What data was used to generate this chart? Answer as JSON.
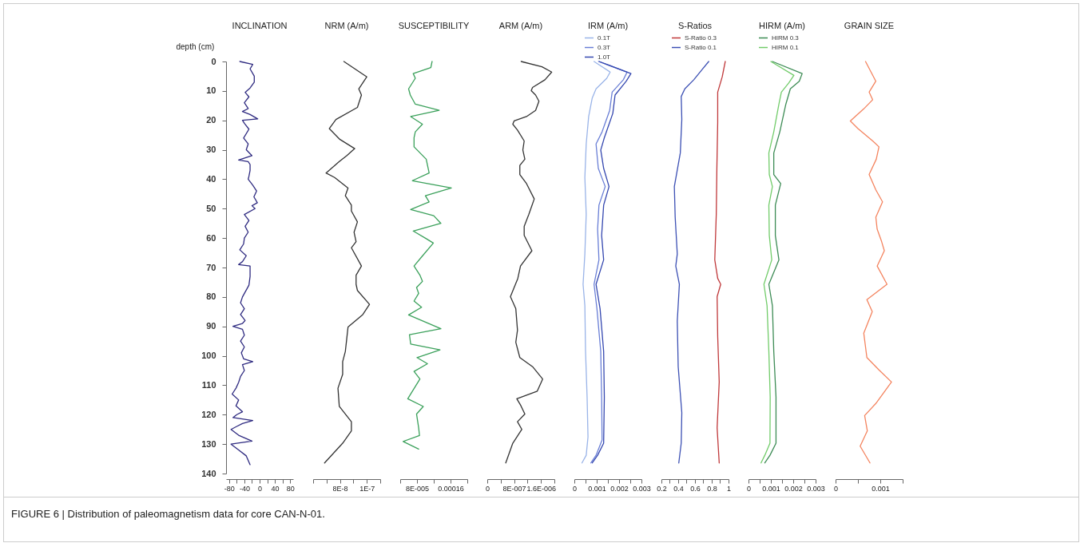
{
  "chart_data": [
    {
      "type": "line",
      "title": "INCLINATION",
      "ylabel": "depth (cm)",
      "xlim": [
        -88,
        88
      ],
      "xticks": [
        -80,
        {
          "value": -60,
          "label": null
        },
        -40,
        {
          "value": -20,
          "label": null
        },
        0,
        {
          "value": 20,
          "label": null
        },
        40,
        {
          "value": 60,
          "label": null
        },
        80
      ],
      "ylim": [
        140,
        0
      ],
      "yticks": [
        0,
        10,
        20,
        30,
        40,
        50,
        60,
        70,
        80,
        90,
        100,
        110,
        120,
        130,
        140
      ],
      "annotations": [
        "FIGURE 6 | Distribution of paleomagnetism data for core CAN-N-01."
      ],
      "series": [
        {
          "color": "#2e2a80",
          "x": [
            -52,
            -18,
            -25,
            -14,
            -14,
            -25,
            -38,
            -28,
            -40,
            -30,
            -45,
            -25,
            -5,
            -45,
            -40,
            -28,
            -42,
            -30,
            -35,
            -20,
            -55,
            -30,
            -25,
            -25,
            -28,
            -30,
            -18,
            -8,
            -15,
            -6,
            -20,
            -12,
            -40,
            -28,
            -38,
            -30,
            -40,
            -42,
            -52,
            -35,
            -45,
            -55,
            -25,
            -25,
            -25,
            -28,
            -45,
            -50,
            -40,
            -50,
            -38,
            -45,
            -70,
            -45,
            -40,
            -50,
            -40,
            -48,
            -42,
            -18,
            -45,
            -40,
            -50,
            -55,
            -62,
            -72,
            -55,
            -62,
            -45,
            -60,
            -70,
            -18,
            -45,
            -60,
            -75,
            -55,
            -20,
            -75,
            -55,
            -35,
            -25
          ],
          "values": [
            0,
            1,
            2.5,
            5,
            7,
            9,
            10.5,
            12,
            14,
            16,
            17,
            18,
            19.5,
            20,
            21,
            23,
            26,
            28,
            30,
            32,
            33.5,
            34,
            35,
            37,
            39,
            40,
            42,
            44,
            46,
            48,
            49,
            50,
            52,
            54,
            56,
            58,
            60,
            62,
            64,
            66,
            68,
            69,
            69.5,
            71,
            73,
            76,
            80,
            82,
            84,
            86,
            88,
            89,
            90,
            91,
            93,
            95,
            97,
            99,
            101,
            102,
            103,
            105,
            107,
            109,
            111,
            113,
            115,
            117,
            119,
            120,
            121,
            122,
            123,
            124,
            125,
            127,
            129,
            130,
            132,
            134,
            137
          ]
        }
      ]
    },
    {
      "type": "line",
      "title": "NRM (A/m)",
      "tick_labels": "x",
      "xlim": [
        6e-08,
        1.1e-07
      ],
      "xticks": [
        {
          "value": 6e-08,
          "label": null
        },
        {
          "value": 7e-08,
          "label": null
        },
        {
          "value": 8e-08,
          "label": "8E-8"
        },
        {
          "value": 9e-08,
          "label": null
        },
        {
          "value": 1e-07,
          "label": "1E-7"
        },
        {
          "value": 1.1e-07,
          "label": null
        }
      ],
      "ylim": [
        140,
        0
      ],
      "series": [
        {
          "color": "#333333",
          "x": [
            8.29e-08,
            1e-07,
            9.4e-08,
            9.6e-08,
            9.3e-08,
            7.7e-08,
            7.2e-08,
            8e-08,
            9.1e-08,
            8.5e-08,
            7.95e-08,
            6.96e-08,
            7.6e-08,
            8.6e-08,
            8.4e-08,
            8.85e-08,
            8.85e-08,
            9.3e-08,
            9.05e-08,
            9.2e-08,
            8.85e-08,
            9.6e-08,
            9.2e-08,
            9.2e-08,
            9.3e-08,
            1.02e-07,
            9.7e-08,
            8.6e-08,
            8.5e-08,
            8.4e-08,
            8.2e-08,
            8.2e-08,
            7.85e-08,
            7.95e-08,
            8.85e-08,
            8.85e-08,
            8.2e-08,
            6.85e-08
          ],
          "values": [
            0,
            5.2,
            9.3,
            11.4,
            15.6,
            19.7,
            22.8,
            26.5,
            29.6,
            32,
            34,
            37.9,
            39.4,
            43,
            45.6,
            48.8,
            50.8,
            54.5,
            58,
            61.2,
            63.3,
            69.5,
            72.6,
            75.7,
            77.8,
            82.5,
            86,
            90.2,
            94.4,
            98.5,
            102,
            106.3,
            111,
            117.2,
            122.4,
            125.5,
            129.7,
            136.4
          ]
        }
      ]
    },
    {
      "type": "line",
      "title": "SUSCEPTIBILITY",
      "tick_labels": "x",
      "xlim": [
        4e-05,
        0.0002
      ],
      "xticks": [
        {
          "value": 4e-05,
          "label": null
        },
        {
          "value": 8e-05,
          "label": "8E-005"
        },
        {
          "value": 0.00012,
          "label": null
        },
        {
          "value": 0.00016,
          "label": "0.00016"
        },
        {
          "value": 0.0002,
          "label": null
        }
      ],
      "ylim": [
        140,
        0
      ],
      "series": [
        {
          "color": "#3aa05a",
          "x": [
            0.000116,
            0.000113,
            7.1e-05,
            7.6e-05,
            6e-05,
            6.4e-05,
            7.6e-05,
            0.000133,
            6.5e-05,
            9.3e-05,
            7.6e-05,
            7.3e-05,
            7.3e-05,
            0.000102,
            0.000109,
            6.9e-05,
            0.000162,
            0.0001,
            0.000109,
            6.5e-05,
            0.00012,
            0.000137,
            7.1e-05,
            0.000102,
            0.000119,
            9.1e-05,
            7.3e-05,
            8.7e-05,
            9.3e-05,
            7.9e-05,
            8.4e-05,
            7.3e-05,
            9.1e-05,
            6e-05,
            0.000137,
            6.2e-05,
            6.5e-05,
            0.000135,
            8e-05,
            0.000105,
            7.3e-05,
            8.7e-05,
            5.8e-05,
            9.5e-05,
            7.9e-05,
            8.4e-05,
            8.6e-05,
            4.7e-05,
            8.4e-05
          ],
          "values": [
            0,
            2.1,
            4.1,
            5.7,
            9.3,
            11.4,
            14.5,
            16.6,
            18.7,
            21.3,
            23.9,
            25.9,
            29,
            33.2,
            37.9,
            40.5,
            43,
            45.6,
            47.7,
            50.3,
            52.4,
            55,
            57.6,
            60.2,
            61.7,
            66.4,
            69.5,
            72.6,
            74.7,
            76.8,
            78.8,
            81.4,
            83.5,
            86.1,
            90.8,
            92.8,
            96,
            98,
            100.6,
            102.7,
            105.3,
            107.9,
            114.6,
            117.2,
            119.8,
            124.5,
            127.1,
            129.1,
            131.7
          ]
        }
      ]
    },
    {
      "type": "line",
      "title": "ARM (A/m)",
      "tick_labels": "x",
      "xlim": [
        0,
        2e-06
      ],
      "xticks": [
        0,
        {
          "value": 4e-07,
          "label": null
        },
        {
          "value": 8e-07,
          "label": "8E-007"
        },
        {
          "value": 1.2e-06,
          "label": null
        },
        {
          "value": 1.6e-06,
          "label": "1.6E-006"
        },
        {
          "value": 2e-06,
          "label": null
        }
      ],
      "ylim": [
        140,
        0
      ],
      "series": [
        {
          "color": "#333333",
          "x": [
            1.01e-06,
            1.63e-06,
            1.92e-06,
            1.72e-06,
            1.35e-06,
            1.31e-06,
            1.44e-06,
            1.54e-06,
            1.44e-06,
            1.17e-06,
            8e-07,
            7.6e-07,
            9e-07,
            1.1e-06,
            1.06e-06,
            1.12e-06,
            9.7e-07,
            9.7e-07,
            1.17e-06,
            1.4e-06,
            1.24e-06,
            1.1e-06,
            1.1e-06,
            1.33e-06,
            9.9e-07,
            9.1e-07,
            6.9e-07,
            8.5e-07,
            9e-07,
            8.5e-07,
            9.7e-07,
            1.35e-06,
            1.65e-06,
            1.49e-06,
            8.8e-07,
            9.9e-07,
            1.12e-06,
            9e-07,
            1.03e-06,
            7.6e-07,
            5.5e-07
          ],
          "values": [
            0,
            1.8,
            3.6,
            6.2,
            8.8,
            9.9,
            11.4,
            13.5,
            16.6,
            18.7,
            20.2,
            21.3,
            23.3,
            27,
            30.1,
            33.2,
            35.3,
            38.4,
            41.5,
            46.7,
            51.9,
            56,
            59.1,
            64.3,
            69.5,
            73.7,
            79.9,
            84,
            91.3,
            95.4,
            100.6,
            103.7,
            107.9,
            112,
            114.6,
            116.7,
            119.8,
            122.4,
            125,
            129.7,
            136.4
          ]
        }
      ]
    },
    {
      "type": "line",
      "title": "IRM (A/m)",
      "tick_labels": "x",
      "legend": "top",
      "xlim": [
        0,
        0.003
      ],
      "xticks": [
        0,
        {
          "value": 0.0005,
          "label": null
        },
        0.001,
        {
          "value": 0.0015,
          "label": null
        },
        0.002,
        {
          "value": 0.0025,
          "label": null
        },
        0.003
      ],
      "ylim": [
        140,
        0
      ],
      "series": [
        {
          "name": "0.1T",
          "color": "#9ab4e8",
          "x": [
            0.00088,
            0.0016,
            0.00145,
            0.00097,
            0.0008,
            0.00064,
            0.00053,
            0.00047,
            0.00053,
            0.00047,
            0.00039,
            0.00047,
            0.0005,
            0.00057,
            0.00061,
            0.00053,
            0.00034
          ],
          "values": [
            0,
            3.6,
            5.7,
            9.3,
            12.4,
            18.7,
            28,
            39.4,
            51.9,
            65.4,
            75.7,
            83,
            98.5,
            114,
            127.6,
            133.8,
            136.4
          ]
        },
        {
          "name": "0.3T",
          "color": "#6a7fd6",
          "x": [
            0.00108,
            0.00236,
            0.00219,
            0.00169,
            0.00158,
            0.00124,
            0.00097,
            0.00107,
            0.00138,
            0.0011,
            0.00104,
            0.0011,
            0.00088,
            0.00101,
            0.00118,
            0.00122,
            0.00124,
            0.00097,
            0.00074
          ],
          "values": [
            0,
            3.6,
            6.2,
            10.4,
            16.6,
            23.9,
            28,
            36.3,
            42.5,
            48.8,
            57,
            67.4,
            75.7,
            84,
            98.5,
            114,
            128.6,
            133.8,
            136.4
          ]
        },
        {
          "name": "1.0T",
          "color": "#3548b0",
          "x": [
            0.00111,
            0.00253,
            0.00232,
            0.00182,
            0.00172,
            0.00134,
            0.00118,
            0.00131,
            0.00155,
            0.00131,
            0.00122,
            0.00131,
            0.00097,
            0.00115,
            0.00131,
            0.00134,
            0.00131,
            0.00104,
            0.0008
          ],
          "values": [
            0,
            4.1,
            6.7,
            11.4,
            17.6,
            25.9,
            30.1,
            36.3,
            42.5,
            48.8,
            59.1,
            67.4,
            75.7,
            84,
            98.5,
            114,
            129.7,
            133.8,
            136.4
          ]
        }
      ]
    },
    {
      "type": "line",
      "title": "S-Ratios",
      "tick_labels": "x",
      "legend": "top",
      "xlim": [
        0.2,
        1
      ],
      "xticks": [
        0.2,
        {
          "value": 0.3,
          "label": null
        },
        0.4,
        {
          "value": 0.5,
          "label": null
        },
        0.6,
        {
          "value": 0.7,
          "label": null
        },
        0.8,
        {
          "value": 0.9,
          "label": null
        },
        1
      ],
      "ylim": [
        140,
        0
      ],
      "series": [
        {
          "name": "S-Ratio 0.3",
          "color": "#c0393b",
          "x": [
            0.961,
            0.925,
            0.871,
            0.871,
            0.861,
            0.854,
            0.836,
            0.871,
            0.907,
            0.864,
            0.871,
            0.889,
            0.864,
            0.889
          ],
          "values": [
            0,
            5.2,
            10.4,
            20.7,
            36.3,
            51.9,
            67.4,
            73.7,
            75.7,
            79.9,
            93.4,
            108.9,
            124.5,
            136.4
          ]
        },
        {
          "name": "S-Ratio 0.1",
          "color": "#3c50b4",
          "x": [
            0.764,
            0.675,
            0.586,
            0.479,
            0.436,
            0.443,
            0.425,
            0.354,
            0.364,
            0.389,
            0.371,
            0.414,
            0.389,
            0.4,
            0.443,
            0.436,
            0.407
          ],
          "values": [
            0,
            3.1,
            6.2,
            9.3,
            11.9,
            19.7,
            31.1,
            42.5,
            52.9,
            65.4,
            69.5,
            75.7,
            88.2,
            103.7,
            119.3,
            129.7,
            136.4
          ]
        }
      ]
    },
    {
      "type": "line",
      "title": "HIRM (A/m)",
      "tick_labels": "x",
      "legend": "top",
      "xlim": [
        0,
        0.003
      ],
      "xticks": [
        0,
        {
          "value": 0.0005,
          "label": null
        },
        0.001,
        {
          "value": 0.0015,
          "label": null
        },
        0.002,
        {
          "value": 0.0025,
          "label": null
        },
        0.003
      ],
      "ylim": [
        140,
        0
      ],
      "series": [
        {
          "name": "HIRM 0.3",
          "color": "#3d8c55",
          "x": [
            0.00107,
            0.0024,
            0.00227,
            0.00187,
            0.00167,
            0.0014,
            0.00113,
            0.00113,
            0.00144,
            0.0012,
            0.0012,
            0.00136,
            0.00091,
            0.00107,
            0.00113,
            0.00123,
            0.00123,
            0.00096,
            0.00073
          ],
          "values": [
            0,
            4.1,
            6.7,
            9.3,
            14.5,
            23.9,
            31.1,
            38.4,
            41.5,
            48.8,
            59.1,
            67.4,
            75.7,
            83,
            98.5,
            114,
            129.7,
            133.8,
            136.4
          ]
        },
        {
          "name": "HIRM 0.1",
          "color": "#72cc6a",
          "x": [
            0.001,
            0.00203,
            0.0018,
            0.00147,
            0.00136,
            0.00113,
            0.00091,
            0.00093,
            0.00107,
            0.00091,
            0.00093,
            0.00104,
            0.00069,
            0.00083,
            0.00091,
            0.00097,
            0.00096,
            0.00073,
            0.00056
          ],
          "values": [
            0,
            4.7,
            7.3,
            10.4,
            14.5,
            23.9,
            31.1,
            38.4,
            42.5,
            48.8,
            59.1,
            67.4,
            75.7,
            83,
            98.5,
            114,
            129.7,
            133.8,
            136.4
          ]
        }
      ]
    },
    {
      "type": "line",
      "title": "GRAIN SIZE",
      "tick_labels": "x",
      "xlim": [
        0,
        0.0015
      ],
      "xticks": [
        0,
        {
          "value": 0.0005,
          "label": null
        },
        0.001,
        {
          "value": 0.0015,
          "label": null
        }
      ],
      "ylim": [
        140,
        0
      ],
      "series": [
        {
          "color": "#f4845f",
          "x": [
            0.00067,
            0.0009,
            0.00075,
            0.00083,
            0.00063,
            0.00033,
            0.0005,
            0.00083,
            0.00097,
            0.00091,
            0.00075,
            0.0009,
            0.00105,
            0.0009,
            0.00093,
            0.00103,
            0.00109,
            0.00093,
            0.00115,
            0.0007,
            0.00082,
            0.00063,
            0.0007,
            0.00097,
            0.00125,
            0.0009,
            0.00065,
            0.00071,
            0.00055,
            0.00077
          ],
          "values": [
            0,
            6.7,
            10.4,
            13,
            16.1,
            20.2,
            22.8,
            27,
            29,
            33.2,
            38.4,
            43.6,
            47.7,
            52.9,
            57,
            61.2,
            64.3,
            69.5,
            75.7,
            80.9,
            85,
            92.3,
            100.6,
            104.8,
            108.9,
            116.2,
            120.3,
            125.5,
            130.7,
            136.4
          ]
        }
      ]
    }
  ]
}
